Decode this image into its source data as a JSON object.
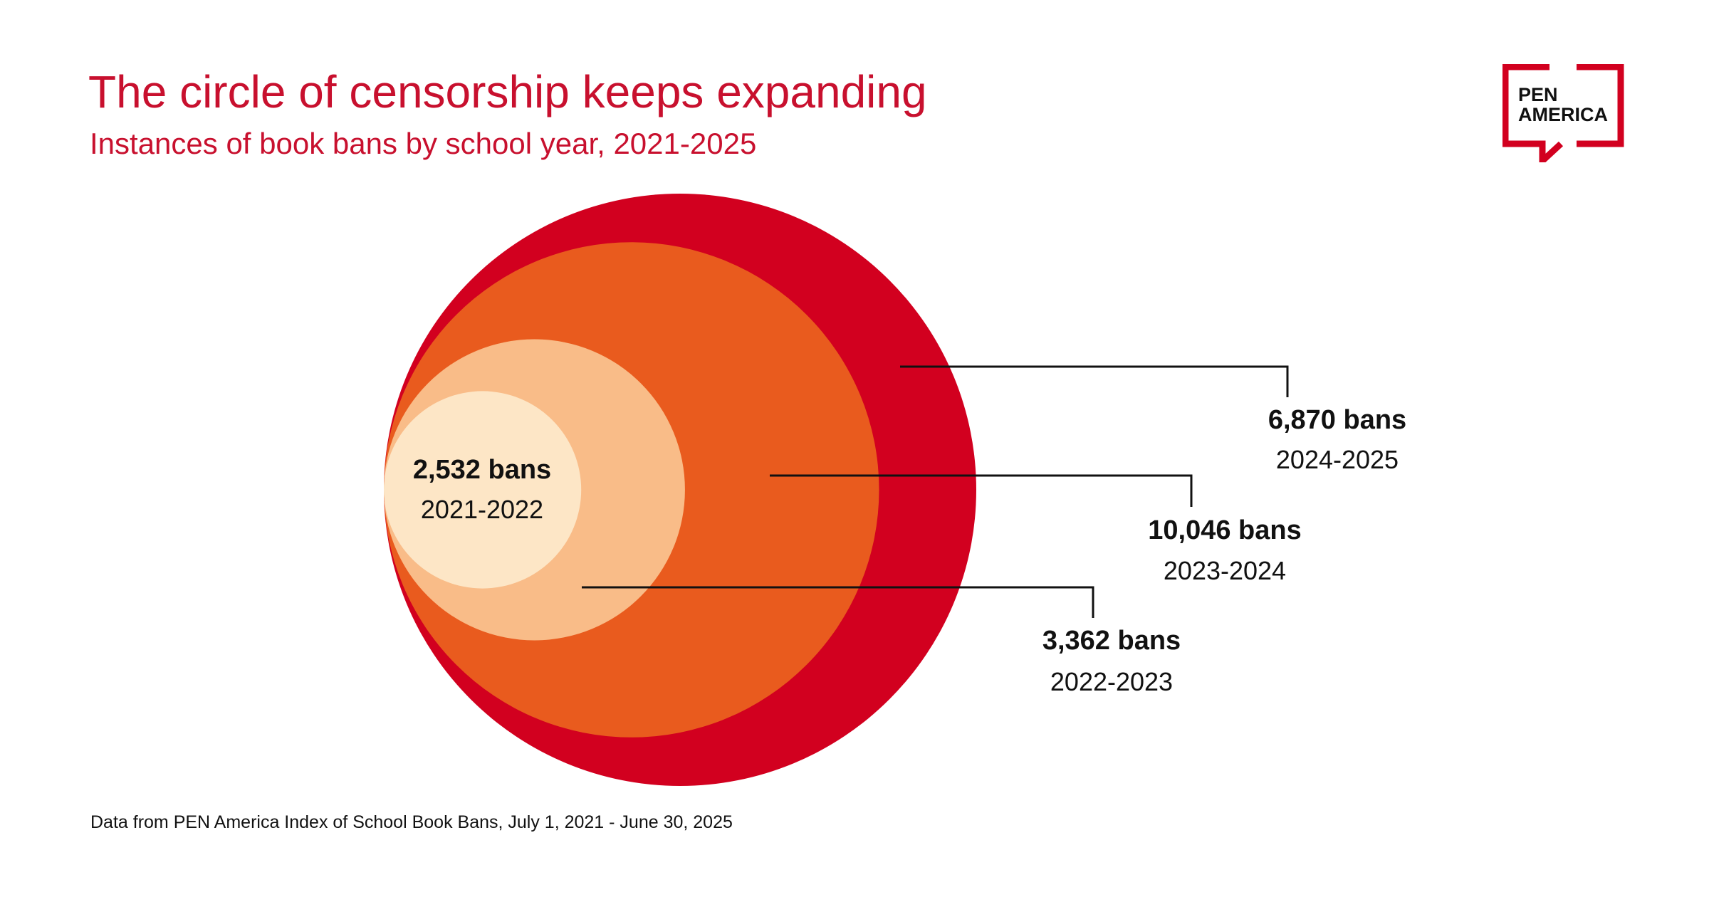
{
  "title": "The circle of censorship keeps expanding",
  "subtitle": "Instances of book bans by school year, 2021-2025",
  "source": "Data from PEN America Index of School Book Bans, July 1, 2021 - June 30, 2025",
  "logo": {
    "text_line1": "PEN",
    "text_line2": "AMERICA",
    "color": "#d2001f"
  },
  "chart_data": {
    "type": "nested-circles",
    "encoding": "cumulative area",
    "series": [
      {
        "year": "2021-2022",
        "value": 2532,
        "label": "2,532 bans",
        "color": "#fde6c6"
      },
      {
        "year": "2022-2023",
        "value": 3362,
        "label": "3,362 bans",
        "color": "#f9bc88"
      },
      {
        "year": "2023-2024",
        "value": 10046,
        "label": "10,046 bans",
        "color": "#e95b1e"
      },
      {
        "year": "2024-2025",
        "value": 6870,
        "label": "6,870 bans",
        "color": "#d2001f"
      }
    ]
  }
}
